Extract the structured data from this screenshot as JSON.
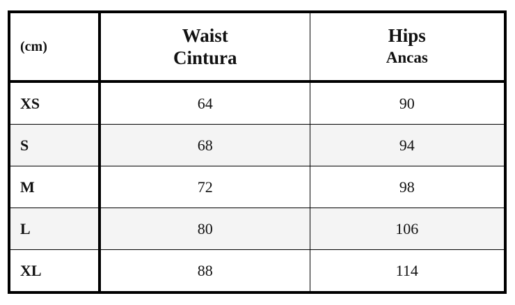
{
  "table": {
    "unit": "(cm)",
    "columns": [
      {
        "title": "Waist",
        "subtitle": "Cintura"
      },
      {
        "title": "Hips",
        "subtitle": "Ancas"
      }
    ],
    "rows": [
      [
        "XS",
        64,
        90
      ],
      [
        "S",
        68,
        94
      ],
      [
        "M",
        72,
        98
      ],
      [
        "L",
        80,
        106
      ],
      [
        "XL",
        88,
        114
      ]
    ]
  }
}
